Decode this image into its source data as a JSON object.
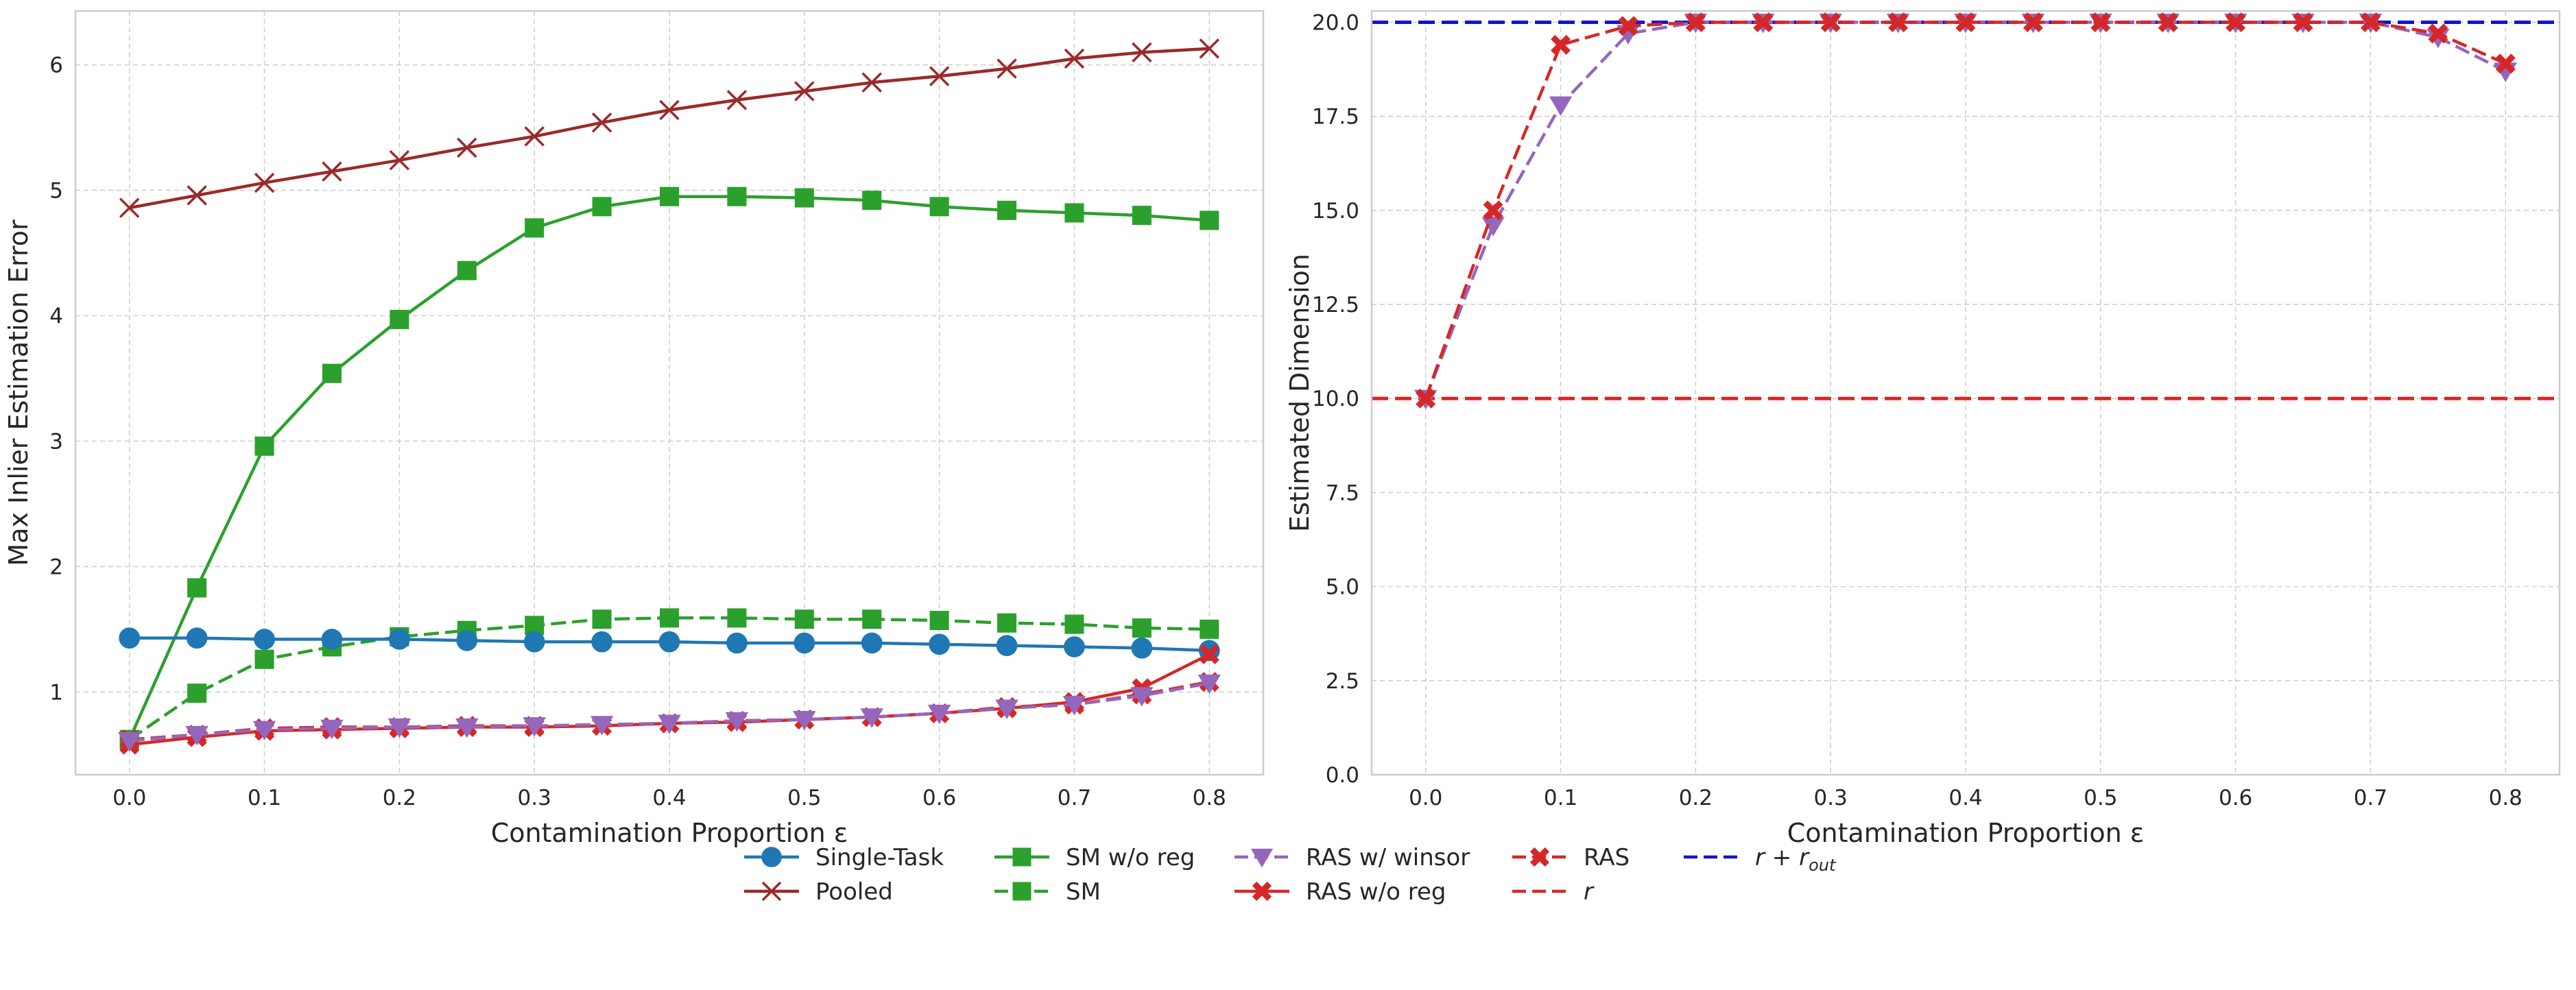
{
  "legend": {
    "entries": [
      {
        "label": "Single-Task",
        "color": "#1f77b4",
        "marker": "circle",
        "dash": "solid"
      },
      {
        "label": "Pooled",
        "color": "#9b2a2a",
        "marker": "x",
        "dash": "solid"
      },
      {
        "label": "SM w/o reg",
        "color": "#2ca02c",
        "marker": "square",
        "dash": "solid"
      },
      {
        "label": "SM",
        "color": "#2ca02c",
        "marker": "square",
        "dash": "dashed"
      },
      {
        "label": "RAS w/ winsor",
        "color": "#9467bd",
        "marker": "triangle-down",
        "dash": "dashed"
      },
      {
        "label": "RAS w/o reg",
        "color": "#d62728",
        "marker": "thick-x",
        "dash": "solid"
      },
      {
        "label": "RAS",
        "color": "#d62728",
        "marker": "thick-x",
        "dash": "dashed"
      },
      {
        "label": "r",
        "color": "#d62728",
        "marker": "none",
        "dash": "dashed"
      },
      {
        "label": "r + r_out",
        "color": "#1414c8",
        "marker": "none",
        "dash": "dashed"
      }
    ]
  },
  "chart_data": [
    {
      "type": "line",
      "title": "",
      "xlabel": "Contamination Proportion ε",
      "ylabel": "Max Inlier Estimation Error",
      "xlim": [
        -0.04,
        0.84
      ],
      "ylim": [
        0.34,
        6.43
      ],
      "xticks": [
        0.0,
        0.1,
        0.2,
        0.3,
        0.4,
        0.5,
        0.6,
        0.7,
        0.8
      ],
      "xtick_labels": [
        "0.0",
        "0.1",
        "0.2",
        "0.3",
        "0.4",
        "0.5",
        "0.6",
        "0.7",
        "0.8"
      ],
      "yticks": [
        1,
        2,
        3,
        4,
        5,
        6
      ],
      "ytick_labels": [
        "1",
        "2",
        "3",
        "4",
        "5",
        "6"
      ],
      "grid": true,
      "x": [
        0.0,
        0.05,
        0.1,
        0.15,
        0.2,
        0.25,
        0.3,
        0.35,
        0.4,
        0.45,
        0.5,
        0.55,
        0.6,
        0.65,
        0.7,
        0.75,
        0.8
      ],
      "series": [
        {
          "name": "Pooled",
          "color": "#9b2a2a",
          "marker": "x",
          "dash": "solid",
          "values": [
            4.86,
            4.96,
            5.06,
            5.15,
            5.24,
            5.34,
            5.43,
            5.54,
            5.64,
            5.72,
            5.79,
            5.86,
            5.91,
            5.97,
            6.05,
            6.1,
            6.13
          ]
        },
        {
          "name": "SM w/o reg",
          "color": "#2ca02c",
          "marker": "square",
          "dash": "solid",
          "values": [
            0.62,
            1.83,
            2.96,
            3.54,
            3.97,
            4.36,
            4.7,
            4.87,
            4.95,
            4.95,
            4.94,
            4.92,
            4.87,
            4.84,
            4.82,
            4.8,
            4.76
          ]
        },
        {
          "name": "SM",
          "color": "#2ca02c",
          "marker": "square",
          "dash": "dashed",
          "values": [
            0.62,
            0.99,
            1.26,
            1.36,
            1.44,
            1.49,
            1.53,
            1.58,
            1.59,
            1.59,
            1.58,
            1.58,
            1.57,
            1.55,
            1.54,
            1.51,
            1.5
          ]
        },
        {
          "name": "Single-Task",
          "color": "#1f77b4",
          "marker": "circle",
          "dash": "solid",
          "values": [
            1.43,
            1.43,
            1.42,
            1.42,
            1.42,
            1.41,
            1.4,
            1.4,
            1.4,
            1.39,
            1.39,
            1.39,
            1.38,
            1.37,
            1.36,
            1.35,
            1.33
          ]
        },
        {
          "name": "RAS w/o reg",
          "color": "#d62728",
          "marker": "thick-x",
          "dash": "solid",
          "values": [
            0.58,
            0.64,
            0.69,
            0.7,
            0.71,
            0.72,
            0.72,
            0.73,
            0.75,
            0.76,
            0.78,
            0.8,
            0.83,
            0.87,
            0.92,
            1.03,
            1.3
          ]
        },
        {
          "name": "RAS",
          "color": "#d62728",
          "marker": "thick-x",
          "dash": "dashed",
          "values": [
            0.62,
            0.66,
            0.71,
            0.72,
            0.72,
            0.73,
            0.73,
            0.73,
            0.75,
            0.77,
            0.78,
            0.8,
            0.83,
            0.88,
            0.9,
            0.98,
            1.08
          ]
        },
        {
          "name": "RAS w/ winsor",
          "color": "#9467bd",
          "marker": "triangle-down",
          "dash": "dashed",
          "values": [
            0.61,
            0.66,
            0.7,
            0.71,
            0.72,
            0.72,
            0.73,
            0.74,
            0.75,
            0.77,
            0.78,
            0.8,
            0.83,
            0.87,
            0.9,
            0.97,
            1.07
          ]
        }
      ]
    },
    {
      "type": "line",
      "title": "",
      "xlabel": "Contamination Proportion ε",
      "ylabel": "Estimated Dimension",
      "xlim": [
        -0.04,
        0.84
      ],
      "ylim": [
        0.0,
        20.3
      ],
      "xticks": [
        0.0,
        0.1,
        0.2,
        0.3,
        0.4,
        0.5,
        0.6,
        0.7,
        0.8
      ],
      "xtick_labels": [
        "0.0",
        "0.1",
        "0.2",
        "0.3",
        "0.4",
        "0.5",
        "0.6",
        "0.7",
        "0.8"
      ],
      "yticks": [
        0.0,
        2.5,
        5.0,
        7.5,
        10.0,
        12.5,
        15.0,
        17.5,
        20.0
      ],
      "ytick_labels": [
        "0.0",
        "2.5",
        "5.0",
        "7.5",
        "10.0",
        "12.5",
        "15.0",
        "17.5",
        "20.0"
      ],
      "grid": true,
      "x": [
        0.0,
        0.05,
        0.1,
        0.15,
        0.2,
        0.25,
        0.3,
        0.35,
        0.4,
        0.45,
        0.5,
        0.55,
        0.6,
        0.65,
        0.7,
        0.75,
        0.8
      ],
      "hlines": [
        {
          "name": "r + r_out",
          "y": 20.0,
          "color": "#1414c8",
          "dash": "dashed"
        },
        {
          "name": "r",
          "y": 10.0,
          "color": "#d62728",
          "dash": "dashed"
        }
      ],
      "series": [
        {
          "name": "RAS w/ winsor",
          "color": "#9467bd",
          "marker": "triangle-down",
          "dash": "dashed",
          "values": [
            10.0,
            14.6,
            17.8,
            19.7,
            20.0,
            20.0,
            20.0,
            20.0,
            20.0,
            20.0,
            20.0,
            20.0,
            20.0,
            20.0,
            20.0,
            19.6,
            18.7
          ]
        },
        {
          "name": "RAS",
          "color": "#d62728",
          "marker": "thick-x",
          "dash": "dashed",
          "values": [
            10.0,
            15.0,
            19.4,
            19.9,
            20.0,
            20.0,
            20.0,
            20.0,
            20.0,
            20.0,
            20.0,
            20.0,
            20.0,
            20.0,
            20.0,
            19.7,
            18.9
          ]
        }
      ]
    }
  ]
}
